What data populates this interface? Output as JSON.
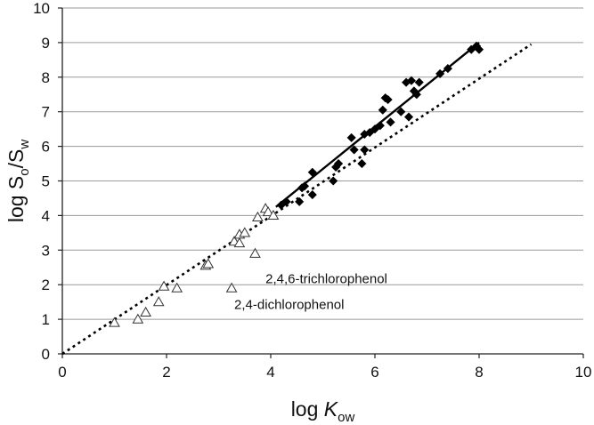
{
  "chart_data": {
    "type": "scatter",
    "title": "",
    "xlabel": {
      "main": "log ",
      "italic": "K",
      "sub": "ow"
    },
    "ylabel": {
      "main": "log S",
      "sub1": "o",
      "mid": "/S",
      "sub2": "w"
    },
    "xlim": [
      0,
      10
    ],
    "ylim": [
      0,
      10
    ],
    "xticks": [
      0,
      2,
      4,
      6,
      8,
      10
    ],
    "yticks": [
      0,
      1,
      2,
      3,
      4,
      5,
      6,
      7,
      8,
      9,
      10
    ],
    "grid": {
      "horizontal": true,
      "vertical": false
    },
    "legend": "none",
    "series": [
      {
        "marker": "open-triangle",
        "points": [
          [
            1.0,
            0.9
          ],
          [
            1.45,
            1.0
          ],
          [
            1.6,
            1.2
          ],
          [
            1.85,
            1.5
          ],
          [
            1.95,
            1.95
          ],
          [
            2.2,
            1.9
          ],
          [
            2.75,
            2.55
          ],
          [
            2.8,
            2.6
          ],
          [
            3.25,
            1.9
          ],
          [
            3.3,
            3.25
          ],
          [
            3.4,
            3.2
          ],
          [
            3.4,
            3.45
          ],
          [
            3.5,
            3.5
          ],
          [
            3.7,
            2.9
          ],
          [
            3.75,
            3.95
          ],
          [
            3.9,
            4.2
          ],
          [
            3.95,
            4.1
          ],
          [
            4.05,
            4.0
          ]
        ]
      },
      {
        "marker": "filled-diamond",
        "points": [
          [
            4.2,
            4.3
          ],
          [
            4.3,
            4.4
          ],
          [
            4.55,
            4.4
          ],
          [
            4.6,
            4.8
          ],
          [
            4.65,
            4.85
          ],
          [
            4.8,
            4.6
          ],
          [
            4.8,
            5.25
          ],
          [
            5.2,
            5.0
          ],
          [
            5.25,
            5.4
          ],
          [
            5.3,
            5.5
          ],
          [
            5.55,
            6.25
          ],
          [
            5.6,
            5.9
          ],
          [
            5.75,
            5.5
          ],
          [
            5.8,
            5.9
          ],
          [
            5.8,
            6.35
          ],
          [
            5.9,
            6.4
          ],
          [
            6.0,
            6.5
          ],
          [
            6.1,
            6.6
          ],
          [
            6.15,
            7.05
          ],
          [
            6.2,
            7.4
          ],
          [
            6.25,
            7.35
          ],
          [
            6.3,
            6.7
          ],
          [
            6.5,
            7.0
          ],
          [
            6.6,
            7.85
          ],
          [
            6.65,
            6.85
          ],
          [
            6.7,
            7.9
          ],
          [
            6.75,
            7.6
          ],
          [
            6.8,
            7.5
          ],
          [
            6.85,
            7.85
          ],
          [
            7.25,
            8.1
          ],
          [
            7.4,
            8.25
          ],
          [
            7.85,
            8.8
          ],
          [
            7.95,
            8.9
          ],
          [
            8.0,
            8.8
          ]
        ]
      }
    ],
    "lines": [
      {
        "style": "solid",
        "from": [
          4.1,
          4.25
        ],
        "to": [
          8.0,
          9.0
        ]
      },
      {
        "style": "dotted",
        "from": [
          0.0,
          0.0
        ],
        "to": [
          9.0,
          8.95
        ]
      }
    ],
    "annotations": [
      {
        "text": "2,4,6-trichlorophenol",
        "x": 3.9,
        "y": 2.05
      },
      {
        "text": "2,4-dichlorophenol",
        "x": 3.3,
        "y": 1.3
      }
    ]
  }
}
